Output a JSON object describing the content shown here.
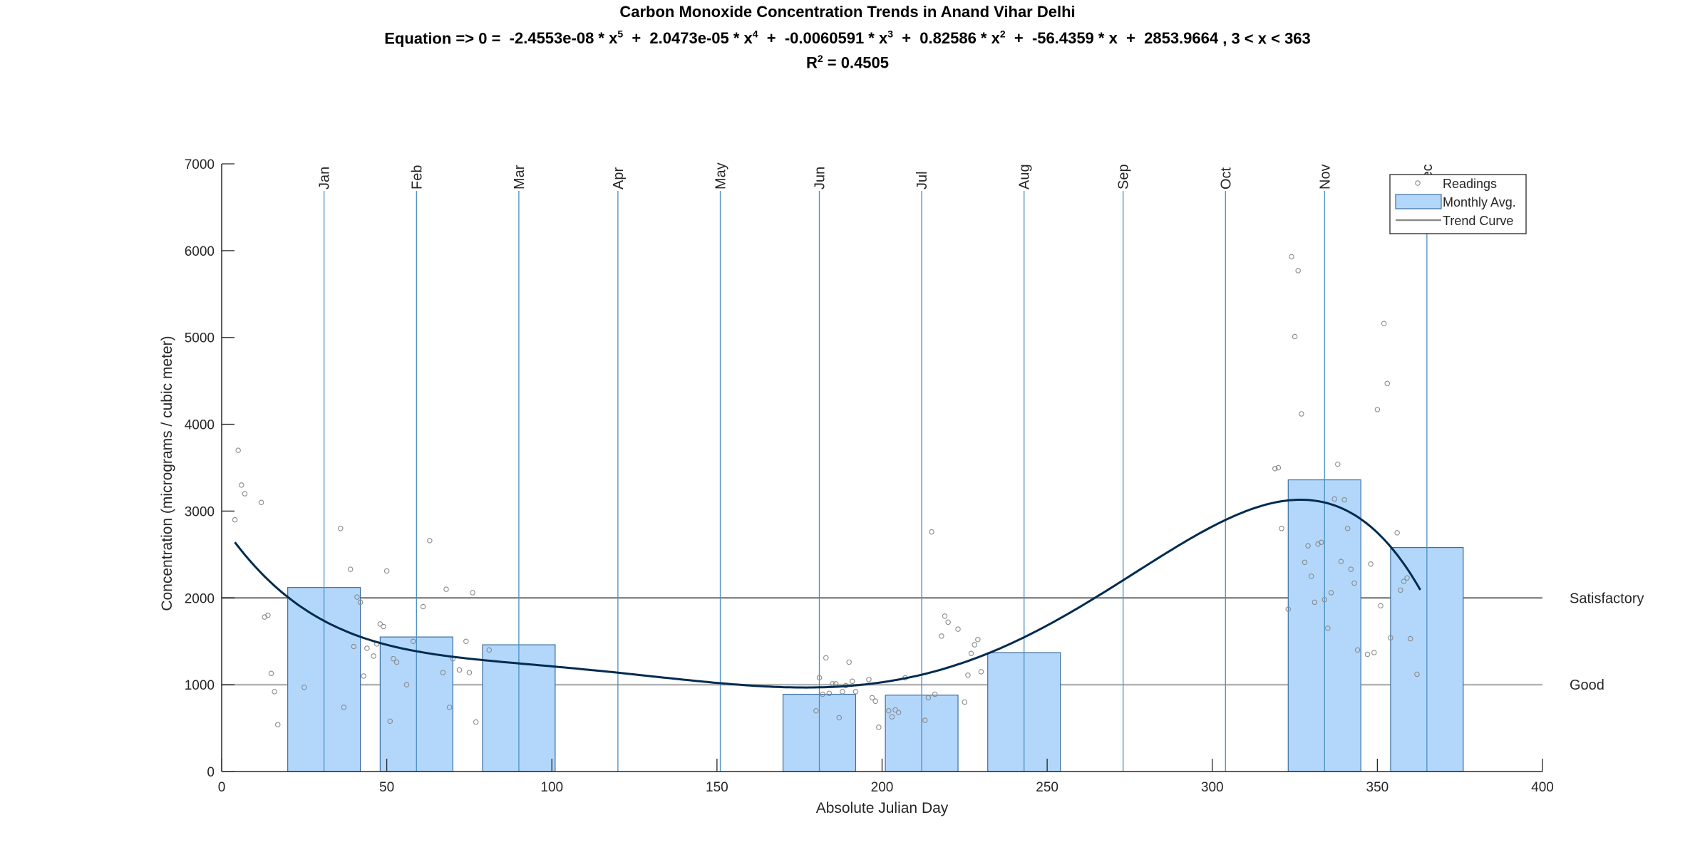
{
  "chart_data": {
    "type": "scatter",
    "title": "Carbon Monoxide Concentration Trends in Anand Vihar Delhi",
    "equation": {
      "prefix": "Equation =>  0  =",
      "terms": [
        {
          "coef": "-2.4553e-08",
          "var": "x",
          "exp": "5"
        },
        {
          "coef": "2.0473e-05",
          "var": "x",
          "exp": "4"
        },
        {
          "coef": "-0.0060591",
          "var": "x",
          "exp": "3"
        },
        {
          "coef": "0.82586",
          "var": "x",
          "exp": "2"
        },
        {
          "coef": "-56.4359",
          "var": "x",
          "exp": ""
        },
        {
          "coef": "2853.9664",
          "var": "",
          "exp": ""
        }
      ],
      "domain": ", 3 < x < 363"
    },
    "r2": {
      "label": "R",
      "exp": "2",
      "value": " = 0.4505"
    },
    "xlabel": "Absolute Julian Day",
    "ylabel": "Concentration (micrograms / cubic meter)",
    "xlim": [
      0,
      400
    ],
    "ylim": [
      0,
      7000
    ],
    "xticks": [
      0,
      50,
      100,
      150,
      200,
      250,
      300,
      350,
      400
    ],
    "yticks": [
      0,
      1000,
      2000,
      3000,
      4000,
      5000,
      6000,
      7000
    ],
    "months": [
      {
        "label": "Jan",
        "day": 31
      },
      {
        "label": "Feb",
        "day": 59
      },
      {
        "label": "Mar",
        "day": 90
      },
      {
        "label": "Apr",
        "day": 120
      },
      {
        "label": "May",
        "day": 151
      },
      {
        "label": "Jun",
        "day": 181
      },
      {
        "label": "Jul",
        "day": 212
      },
      {
        "label": "Aug",
        "day": 243
      },
      {
        "label": "Sep",
        "day": 273
      },
      {
        "label": "Oct",
        "day": 304
      },
      {
        "label": "Nov",
        "day": 334
      },
      {
        "label": "Dec",
        "day": 365
      }
    ],
    "thresholds": [
      {
        "label": "Satisfactory",
        "value": 2000,
        "color": "#8c8c8c"
      },
      {
        "label": "Good",
        "value": 1000,
        "color": "#b4b4b4"
      }
    ],
    "monthly_avg": [
      {
        "month": "Jan",
        "x_start": 20,
        "x_end": 42,
        "value": 2120
      },
      {
        "month": "Feb",
        "x_start": 48,
        "x_end": 70,
        "value": 1550
      },
      {
        "month": "Mar",
        "x_start": 79,
        "x_end": 101,
        "value": 1460
      },
      {
        "month": "Jun",
        "x_start": 170,
        "x_end": 192,
        "value": 890
      },
      {
        "month": "Jul",
        "x_start": 201,
        "x_end": 223,
        "value": 880
      },
      {
        "month": "Aug",
        "x_start": 232,
        "x_end": 254,
        "value": 1370
      },
      {
        "month": "Nov",
        "x_start": 323,
        "x_end": 345,
        "value": 3360
      },
      {
        "month": "Dec",
        "x_start": 354,
        "x_end": 376,
        "value": 2580
      }
    ],
    "trend_coefficients": [
      -2.4553e-08,
      2.0473e-05,
      -0.0060591,
      0.82586,
      -56.4359,
      2853.9664
    ],
    "trend_domain": [
      4,
      363
    ],
    "readings": [
      [
        4,
        2900
      ],
      [
        5,
        3700
      ],
      [
        6,
        3300
      ],
      [
        7,
        3200
      ],
      [
        12,
        3100
      ],
      [
        13,
        1780
      ],
      [
        14,
        1800
      ],
      [
        15,
        1130
      ],
      [
        16,
        920
      ],
      [
        17,
        540
      ],
      [
        25,
        970
      ],
      [
        36,
        2800
      ],
      [
        37,
        740
      ],
      [
        39,
        2330
      ],
      [
        40,
        1440
      ],
      [
        41,
        2010
      ],
      [
        42,
        1950
      ],
      [
        43,
        1100
      ],
      [
        44,
        1420
      ],
      [
        46,
        1330
      ],
      [
        47,
        1470
      ],
      [
        48,
        1700
      ],
      [
        49,
        1670
      ],
      [
        50,
        2310
      ],
      [
        51,
        580
      ],
      [
        52,
        1300
      ],
      [
        53,
        1260
      ],
      [
        56,
        1000
      ],
      [
        58,
        1500
      ],
      [
        61,
        1900
      ],
      [
        63,
        2660
      ],
      [
        67,
        1140
      ],
      [
        68,
        2100
      ],
      [
        69,
        740
      ],
      [
        70,
        1300
      ],
      [
        72,
        1170
      ],
      [
        74,
        1500
      ],
      [
        75,
        1140
      ],
      [
        76,
        2060
      ],
      [
        77,
        570
      ],
      [
        81,
        1400
      ],
      [
        180,
        700
      ],
      [
        181,
        1080
      ],
      [
        182,
        890
      ],
      [
        183,
        1310
      ],
      [
        184,
        900
      ],
      [
        185,
        1010
      ],
      [
        186,
        1010
      ],
      [
        187,
        620
      ],
      [
        188,
        920
      ],
      [
        189,
        990
      ],
      [
        190,
        1260
      ],
      [
        191,
        1040
      ],
      [
        192,
        920
      ],
      [
        196,
        1060
      ],
      [
        197,
        850
      ],
      [
        198,
        810
      ],
      [
        199,
        510
      ],
      [
        202,
        700
      ],
      [
        203,
        630
      ],
      [
        204,
        710
      ],
      [
        205,
        680
      ],
      [
        207,
        1080
      ],
      [
        213,
        590
      ],
      [
        214,
        850
      ],
      [
        215,
        2760
      ],
      [
        216,
        890
      ],
      [
        218,
        1560
      ],
      [
        219,
        1790
      ],
      [
        220,
        1720
      ],
      [
        223,
        1640
      ],
      [
        225,
        800
      ],
      [
        226,
        1110
      ],
      [
        227,
        1360
      ],
      [
        228,
        1460
      ],
      [
        229,
        1520
      ],
      [
        230,
        1150
      ],
      [
        319,
        3490
      ],
      [
        320,
        3500
      ],
      [
        321,
        2800
      ],
      [
        323,
        1870
      ],
      [
        324,
        5930
      ],
      [
        325,
        5010
      ],
      [
        326,
        5770
      ],
      [
        327,
        4120
      ],
      [
        328,
        2410
      ],
      [
        329,
        2600
      ],
      [
        330,
        2250
      ],
      [
        331,
        1950
      ],
      [
        332,
        2620
      ],
      [
        333,
        2640
      ],
      [
        334,
        1980
      ],
      [
        335,
        1650
      ],
      [
        336,
        2060
      ],
      [
        337,
        3140
      ],
      [
        338,
        3540
      ],
      [
        339,
        2420
      ],
      [
        340,
        3130
      ],
      [
        341,
        2800
      ],
      [
        342,
        2330
      ],
      [
        343,
        2170
      ],
      [
        344,
        1400
      ],
      [
        347,
        1350
      ],
      [
        348,
        2390
      ],
      [
        349,
        1370
      ],
      [
        350,
        4170
      ],
      [
        351,
        1910
      ],
      [
        352,
        5160
      ],
      [
        353,
        4470
      ],
      [
        354,
        1540
      ],
      [
        356,
        2750
      ],
      [
        357,
        2090
      ],
      [
        358,
        2190
      ],
      [
        359,
        2230
      ],
      [
        360,
        1530
      ],
      [
        362,
        1120
      ]
    ],
    "legend": {
      "position": "top-right",
      "entries": [
        "Readings",
        "Monthly Avg.",
        "Trend Curve"
      ]
    },
    "colors": {
      "bar_fill": "#b3d7fb",
      "bar_edge": "#3d6f9e",
      "month_line": "#4a8fc2",
      "trend": "#002b50",
      "reading_marker": "#8a8a8a",
      "axis": "#262626"
    }
  }
}
